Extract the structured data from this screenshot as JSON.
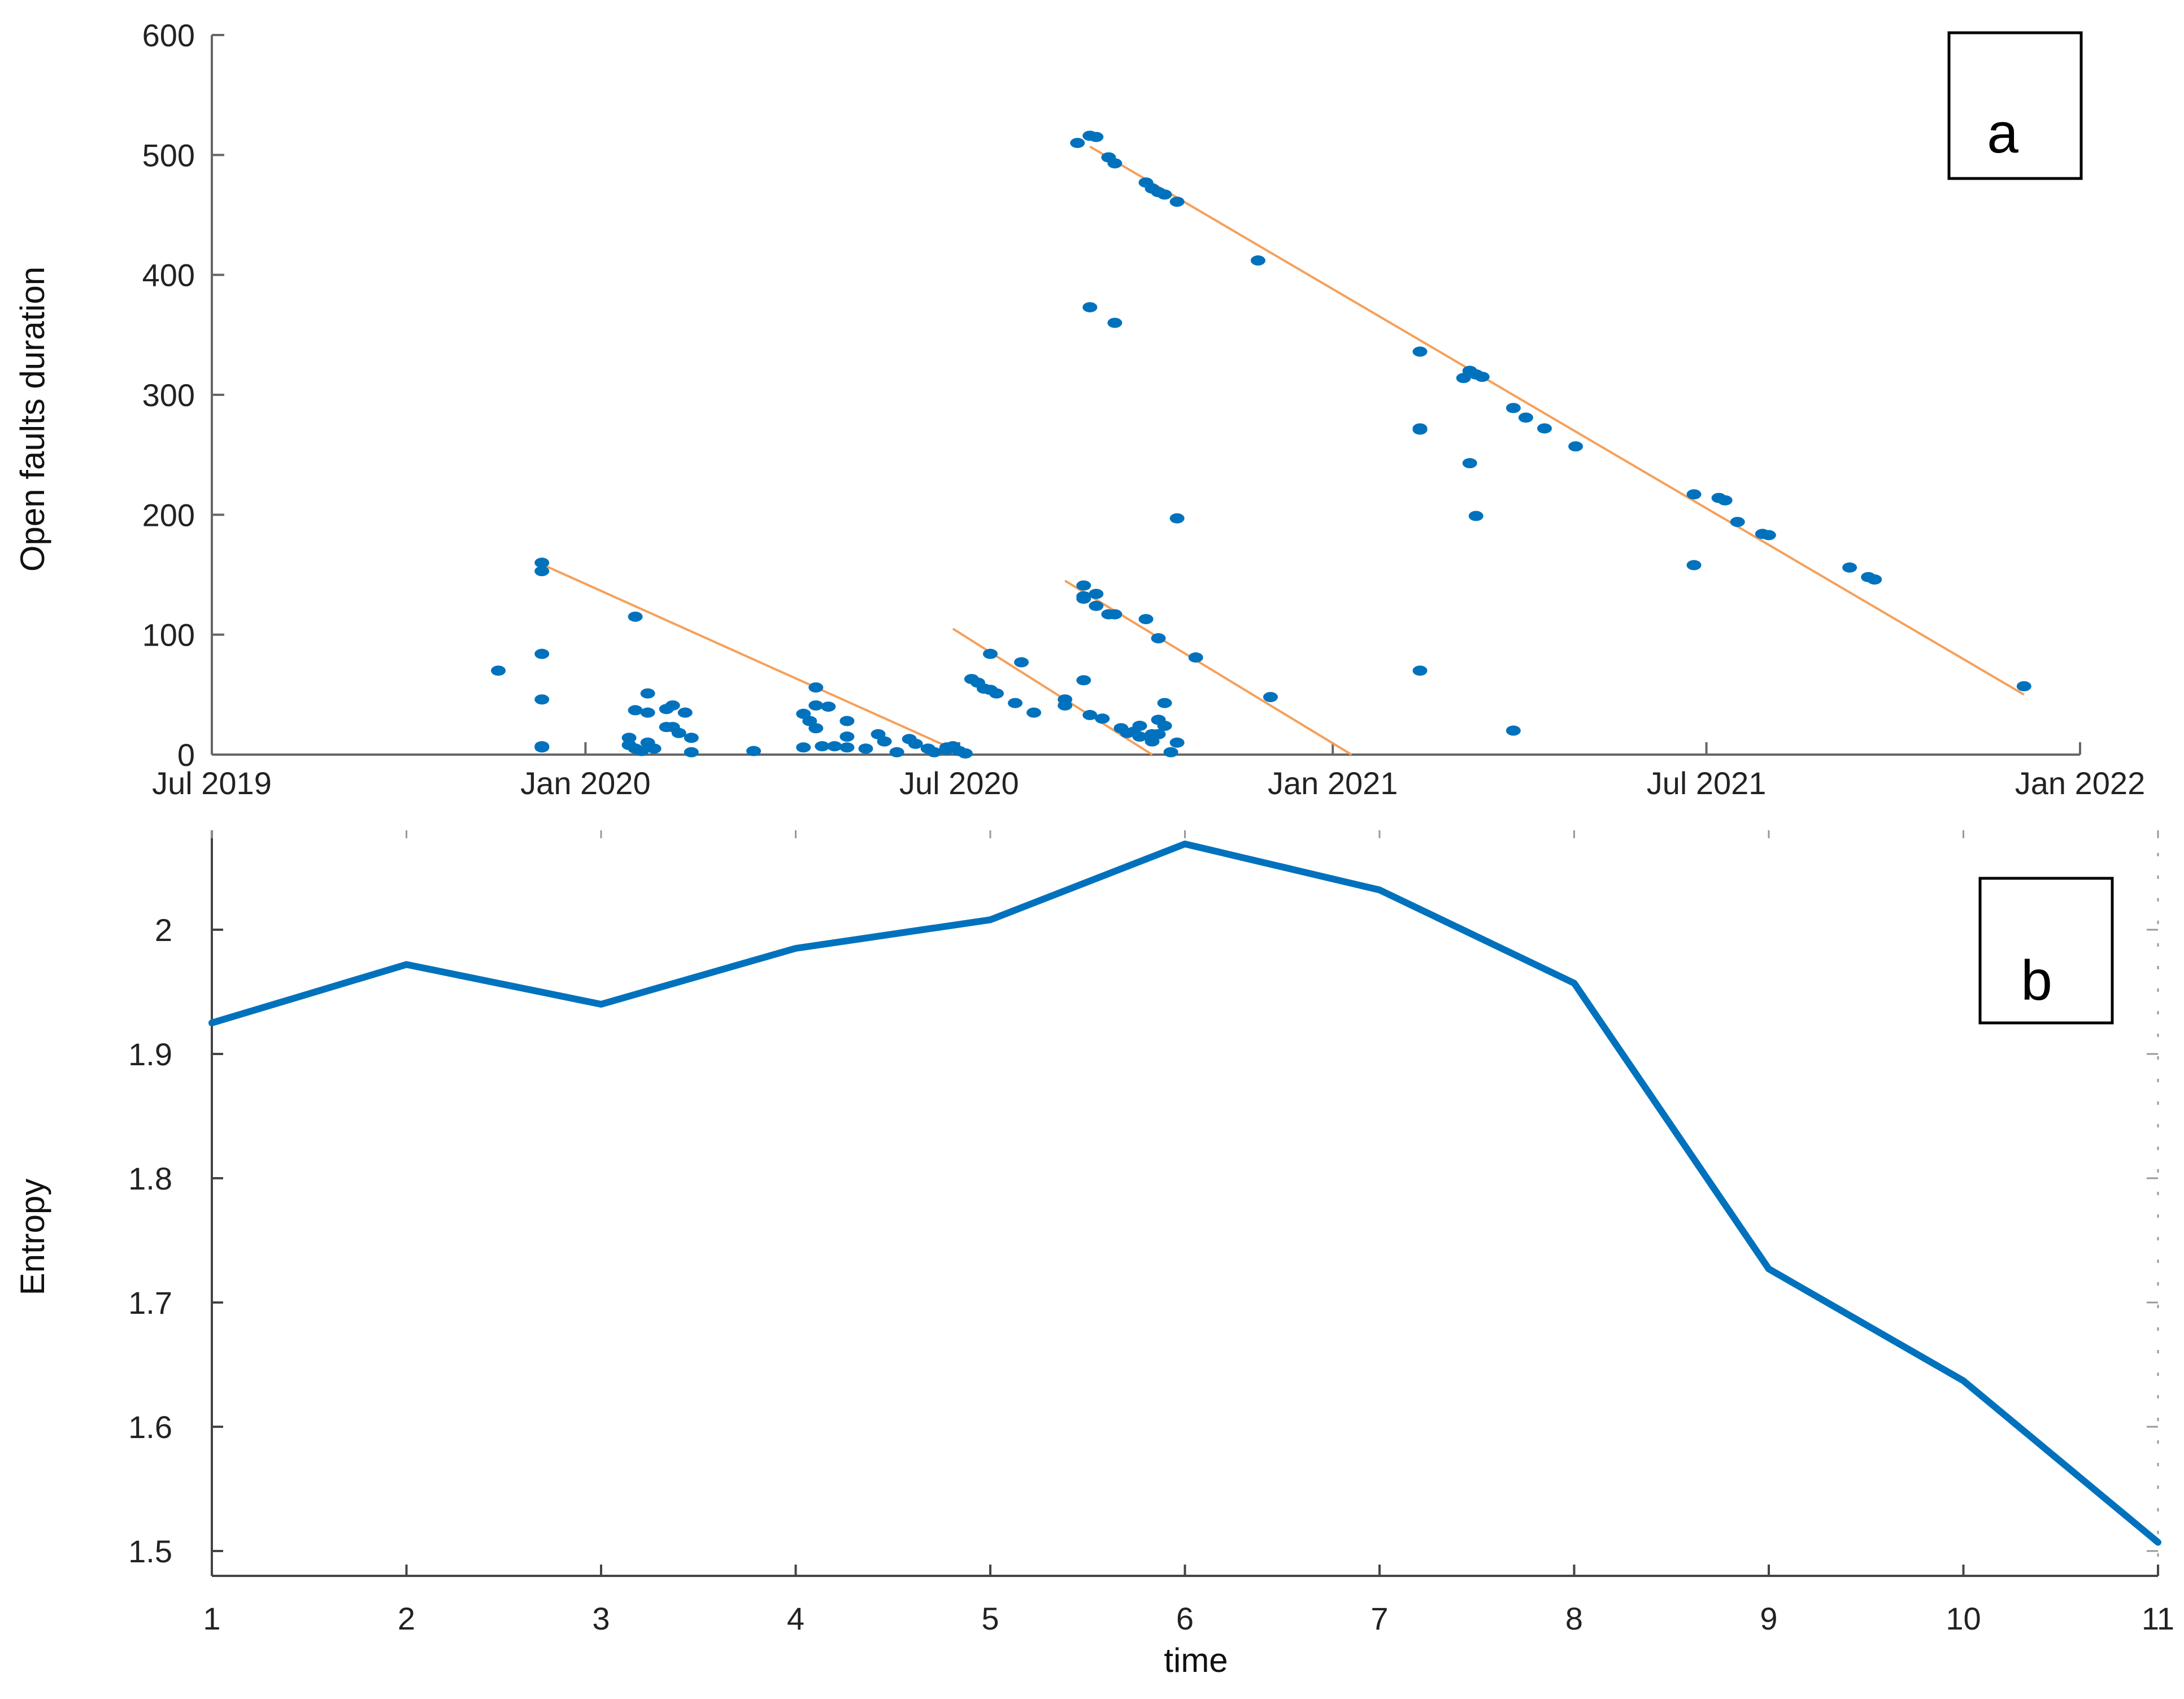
{
  "chart_data": [
    {
      "panel": "a",
      "type": "scatter",
      "ylabel": "Open faults duration",
      "xlabel": "",
      "x_unit": "months since Jul 2019",
      "xlim": [
        0,
        30
      ],
      "ylim": [
        0,
        600
      ],
      "x_ticks": [
        {
          "value": 0,
          "label": "Jul 2019"
        },
        {
          "value": 6,
          "label": "Jan 2020"
        },
        {
          "value": 12,
          "label": "Jul 2020"
        },
        {
          "value": 18,
          "label": "Jan 2021"
        },
        {
          "value": 24,
          "label": "Jul 2021"
        },
        {
          "value": 30,
          "label": "Jan 2022"
        }
      ],
      "y_ticks": [
        0,
        100,
        200,
        300,
        400,
        500,
        600
      ],
      "panel_label": "a",
      "colors": {
        "points": "#0072BD",
        "fit": "#F5A05A"
      },
      "series": [
        {
          "name": "faults",
          "points": [
            [
              4.6,
              70
            ],
            [
              5.3,
              160
            ],
            [
              5.3,
              153
            ],
            [
              5.3,
              84
            ],
            [
              5.3,
              46
            ],
            [
              5.3,
              7
            ],
            [
              5.3,
              6
            ],
            [
              6.8,
              115
            ],
            [
              6.8,
              37
            ],
            [
              6.7,
              14
            ],
            [
              6.7,
              8
            ],
            [
              6.8,
              5
            ],
            [
              6.9,
              3
            ],
            [
              7.0,
              35
            ],
            [
              7.0,
              10
            ],
            [
              7.0,
              51
            ],
            [
              7.1,
              5
            ],
            [
              7.3,
              38
            ],
            [
              7.3,
              23
            ],
            [
              7.4,
              41
            ],
            [
              7.4,
              23
            ],
            [
              7.5,
              18
            ],
            [
              7.6,
              35
            ],
            [
              7.7,
              14
            ],
            [
              7.7,
              2
            ],
            [
              8.7,
              3
            ],
            [
              9.5,
              34
            ],
            [
              9.6,
              28
            ],
            [
              9.5,
              6
            ],
            [
              9.7,
              56
            ],
            [
              9.7,
              41
            ],
            [
              9.7,
              22
            ],
            [
              9.8,
              7
            ],
            [
              9.9,
              40
            ],
            [
              10.0,
              7
            ],
            [
              10.2,
              28
            ],
            [
              10.2,
              6
            ],
            [
              10.2,
              15
            ],
            [
              10.5,
              5
            ],
            [
              10.7,
              17
            ],
            [
              10.8,
              11
            ],
            [
              11.0,
              2
            ],
            [
              11.2,
              13
            ],
            [
              11.3,
              9
            ],
            [
              11.5,
              5
            ],
            [
              11.6,
              2
            ],
            [
              11.8,
              6
            ],
            [
              11.8,
              4
            ],
            [
              11.9,
              7
            ],
            [
              12.0,
              3
            ],
            [
              12.1,
              1
            ],
            [
              12.2,
              63
            ],
            [
              12.3,
              60
            ],
            [
              12.4,
              55
            ],
            [
              12.5,
              84
            ],
            [
              12.5,
              54
            ],
            [
              12.6,
              51
            ],
            [
              12.9,
              43
            ],
            [
              13.0,
              77
            ],
            [
              13.2,
              35
            ],
            [
              13.7,
              46
            ],
            [
              13.7,
              41
            ],
            [
              14.0,
              141
            ],
            [
              14.0,
              132
            ],
            [
              14.0,
              130
            ],
            [
              14.0,
              62
            ],
            [
              14.1,
              33
            ],
            [
              14.2,
              134
            ],
            [
              14.2,
              124
            ],
            [
              14.3,
              30
            ],
            [
              14.4,
              117
            ],
            [
              14.5,
              117
            ],
            [
              14.6,
              22
            ],
            [
              14.7,
              18
            ],
            [
              14.8,
              19
            ],
            [
              14.9,
              24
            ],
            [
              14.9,
              15
            ],
            [
              15.0,
              113
            ],
            [
              15.1,
              17
            ],
            [
              15.1,
              11
            ],
            [
              15.2,
              97
            ],
            [
              15.2,
              29
            ],
            [
              15.2,
              17
            ],
            [
              15.3,
              43
            ],
            [
              15.3,
              24
            ],
            [
              15.4,
              2
            ],
            [
              15.5,
              197
            ],
            [
              15.5,
              10
            ],
            [
              15.8,
              81
            ],
            [
              17.0,
              48
            ],
            [
              13.9,
              510
            ],
            [
              14.1,
              516
            ],
            [
              14.2,
              515
            ],
            [
              14.4,
              498
            ],
            [
              14.5,
              493
            ],
            [
              15.0,
              477
            ],
            [
              15.1,
              472
            ],
            [
              15.2,
              469
            ],
            [
              15.3,
              467
            ],
            [
              15.5,
              461
            ],
            [
              16.8,
              412
            ],
            [
              14.1,
              373
            ],
            [
              14.5,
              360
            ],
            [
              19.4,
              336
            ],
            [
              19.4,
              272
            ],
            [
              19.4,
              271
            ],
            [
              19.4,
              70
            ],
            [
              20.1,
              314
            ],
            [
              20.2,
              320
            ],
            [
              20.2,
              243
            ],
            [
              20.3,
              317
            ],
            [
              20.3,
              199
            ],
            [
              20.4,
              315
            ],
            [
              20.9,
              289
            ],
            [
              20.9,
              20
            ],
            [
              21.1,
              281
            ],
            [
              21.4,
              272
            ],
            [
              21.9,
              257
            ],
            [
              23.8,
              217
            ],
            [
              23.8,
              158
            ],
            [
              24.2,
              214
            ],
            [
              24.3,
              212
            ],
            [
              24.5,
              194
            ],
            [
              24.9,
              184
            ],
            [
              25.0,
              183
            ],
            [
              26.3,
              156
            ],
            [
              26.6,
              148
            ],
            [
              26.7,
              146
            ],
            [
              29.1,
              57
            ]
          ]
        }
      ],
      "fit_lines": [
        {
          "start": [
            5.2,
            161
          ],
          "end": [
            12.1,
            0
          ]
        },
        {
          "start": [
            11.9,
            105
          ],
          "end": [
            15.1,
            0
          ]
        },
        {
          "start": [
            13.7,
            145
          ],
          "end": [
            18.3,
            0
          ]
        },
        {
          "start": [
            14.1,
            507
          ],
          "end": [
            29.1,
            50
          ]
        }
      ]
    },
    {
      "panel": "b",
      "type": "line",
      "xlabel": "time",
      "ylabel": "Entropy",
      "xlim": [
        1,
        11
      ],
      "ylim": [
        1.48,
        2.08
      ],
      "x": [
        1,
        2,
        3,
        4,
        5,
        6,
        7,
        8,
        9,
        10,
        11
      ],
      "x_tick_labels": [
        "1",
        "2",
        "3",
        "4",
        "5",
        "6",
        "7",
        "8",
        "9",
        "10",
        "11"
      ],
      "y_ticks": [
        1.5,
        1.6,
        1.7,
        1.8,
        1.9,
        2.0
      ],
      "y_tick_labels": [
        "1.5",
        "1.6",
        "1.7",
        "1.8",
        "1.9",
        "2"
      ],
      "series": [
        {
          "name": "Entropy",
          "values": [
            1.925,
            1.972,
            1.94,
            1.985,
            2.008,
            2.069,
            2.032,
            1.957,
            1.727,
            1.637,
            1.507
          ]
        }
      ],
      "panel_label": "b",
      "colors": {
        "line": "#0072BD"
      }
    }
  ]
}
